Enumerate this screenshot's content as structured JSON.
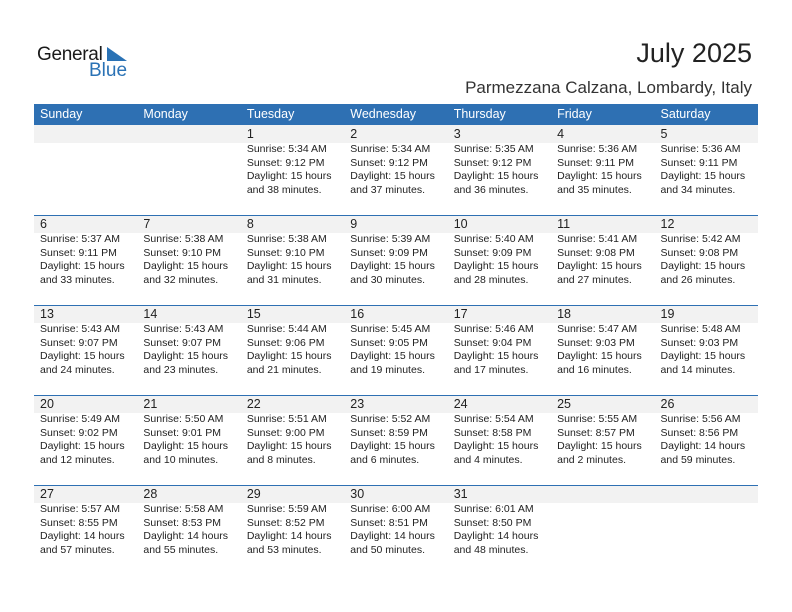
{
  "logo": {
    "text1": "General",
    "text2": "Blue"
  },
  "title": "July 2025",
  "location": "Parmezzana Calzana, Lombardy, Italy",
  "accent": "#2e70b3",
  "weekdays": [
    "Sunday",
    "Monday",
    "Tuesday",
    "Wednesday",
    "Thursday",
    "Friday",
    "Saturday"
  ],
  "weeks": [
    [
      null,
      null,
      {
        "day": "1",
        "lines": [
          "Sunrise: 5:34 AM",
          "Sunset: 9:12 PM",
          "Daylight: 15 hours",
          "and 38 minutes."
        ]
      },
      {
        "day": "2",
        "lines": [
          "Sunrise: 5:34 AM",
          "Sunset: 9:12 PM",
          "Daylight: 15 hours",
          "and 37 minutes."
        ]
      },
      {
        "day": "3",
        "lines": [
          "Sunrise: 5:35 AM",
          "Sunset: 9:12 PM",
          "Daylight: 15 hours",
          "and 36 minutes."
        ]
      },
      {
        "day": "4",
        "lines": [
          "Sunrise: 5:36 AM",
          "Sunset: 9:11 PM",
          "Daylight: 15 hours",
          "and 35 minutes."
        ]
      },
      {
        "day": "5",
        "lines": [
          "Sunrise: 5:36 AM",
          "Sunset: 9:11 PM",
          "Daylight: 15 hours",
          "and 34 minutes."
        ]
      }
    ],
    [
      {
        "day": "6",
        "lines": [
          "Sunrise: 5:37 AM",
          "Sunset: 9:11 PM",
          "Daylight: 15 hours",
          "and 33 minutes."
        ]
      },
      {
        "day": "7",
        "lines": [
          "Sunrise: 5:38 AM",
          "Sunset: 9:10 PM",
          "Daylight: 15 hours",
          "and 32 minutes."
        ]
      },
      {
        "day": "8",
        "lines": [
          "Sunrise: 5:38 AM",
          "Sunset: 9:10 PM",
          "Daylight: 15 hours",
          "and 31 minutes."
        ]
      },
      {
        "day": "9",
        "lines": [
          "Sunrise: 5:39 AM",
          "Sunset: 9:09 PM",
          "Daylight: 15 hours",
          "and 30 minutes."
        ]
      },
      {
        "day": "10",
        "lines": [
          "Sunrise: 5:40 AM",
          "Sunset: 9:09 PM",
          "Daylight: 15 hours",
          "and 28 minutes."
        ]
      },
      {
        "day": "11",
        "lines": [
          "Sunrise: 5:41 AM",
          "Sunset: 9:08 PM",
          "Daylight: 15 hours",
          "and 27 minutes."
        ]
      },
      {
        "day": "12",
        "lines": [
          "Sunrise: 5:42 AM",
          "Sunset: 9:08 PM",
          "Daylight: 15 hours",
          "and 26 minutes."
        ]
      }
    ],
    [
      {
        "day": "13",
        "lines": [
          "Sunrise: 5:43 AM",
          "Sunset: 9:07 PM",
          "Daylight: 15 hours",
          "and 24 minutes."
        ]
      },
      {
        "day": "14",
        "lines": [
          "Sunrise: 5:43 AM",
          "Sunset: 9:07 PM",
          "Daylight: 15 hours",
          "and 23 minutes."
        ]
      },
      {
        "day": "15",
        "lines": [
          "Sunrise: 5:44 AM",
          "Sunset: 9:06 PM",
          "Daylight: 15 hours",
          "and 21 minutes."
        ]
      },
      {
        "day": "16",
        "lines": [
          "Sunrise: 5:45 AM",
          "Sunset: 9:05 PM",
          "Daylight: 15 hours",
          "and 19 minutes."
        ]
      },
      {
        "day": "17",
        "lines": [
          "Sunrise: 5:46 AM",
          "Sunset: 9:04 PM",
          "Daylight: 15 hours",
          "and 17 minutes."
        ]
      },
      {
        "day": "18",
        "lines": [
          "Sunrise: 5:47 AM",
          "Sunset: 9:03 PM",
          "Daylight: 15 hours",
          "and 16 minutes."
        ]
      },
      {
        "day": "19",
        "lines": [
          "Sunrise: 5:48 AM",
          "Sunset: 9:03 PM",
          "Daylight: 15 hours",
          "and 14 minutes."
        ]
      }
    ],
    [
      {
        "day": "20",
        "lines": [
          "Sunrise: 5:49 AM",
          "Sunset: 9:02 PM",
          "Daylight: 15 hours",
          "and 12 minutes."
        ]
      },
      {
        "day": "21",
        "lines": [
          "Sunrise: 5:50 AM",
          "Sunset: 9:01 PM",
          "Daylight: 15 hours",
          "and 10 minutes."
        ]
      },
      {
        "day": "22",
        "lines": [
          "Sunrise: 5:51 AM",
          "Sunset: 9:00 PM",
          "Daylight: 15 hours",
          "and 8 minutes."
        ]
      },
      {
        "day": "23",
        "lines": [
          "Sunrise: 5:52 AM",
          "Sunset: 8:59 PM",
          "Daylight: 15 hours",
          "and 6 minutes."
        ]
      },
      {
        "day": "24",
        "lines": [
          "Sunrise: 5:54 AM",
          "Sunset: 8:58 PM",
          "Daylight: 15 hours",
          "and 4 minutes."
        ]
      },
      {
        "day": "25",
        "lines": [
          "Sunrise: 5:55 AM",
          "Sunset: 8:57 PM",
          "Daylight: 15 hours",
          "and 2 minutes."
        ]
      },
      {
        "day": "26",
        "lines": [
          "Sunrise: 5:56 AM",
          "Sunset: 8:56 PM",
          "Daylight: 14 hours",
          "and 59 minutes."
        ]
      }
    ],
    [
      {
        "day": "27",
        "lines": [
          "Sunrise: 5:57 AM",
          "Sunset: 8:55 PM",
          "Daylight: 14 hours",
          "and 57 minutes."
        ]
      },
      {
        "day": "28",
        "lines": [
          "Sunrise: 5:58 AM",
          "Sunset: 8:53 PM",
          "Daylight: 14 hours",
          "and 55 minutes."
        ]
      },
      {
        "day": "29",
        "lines": [
          "Sunrise: 5:59 AM",
          "Sunset: 8:52 PM",
          "Daylight: 14 hours",
          "and 53 minutes."
        ]
      },
      {
        "day": "30",
        "lines": [
          "Sunrise: 6:00 AM",
          "Sunset: 8:51 PM",
          "Daylight: 14 hours",
          "and 50 minutes."
        ]
      },
      {
        "day": "31",
        "lines": [
          "Sunrise: 6:01 AM",
          "Sunset: 8:50 PM",
          "Daylight: 14 hours",
          "and 48 minutes."
        ]
      },
      null,
      null
    ]
  ]
}
